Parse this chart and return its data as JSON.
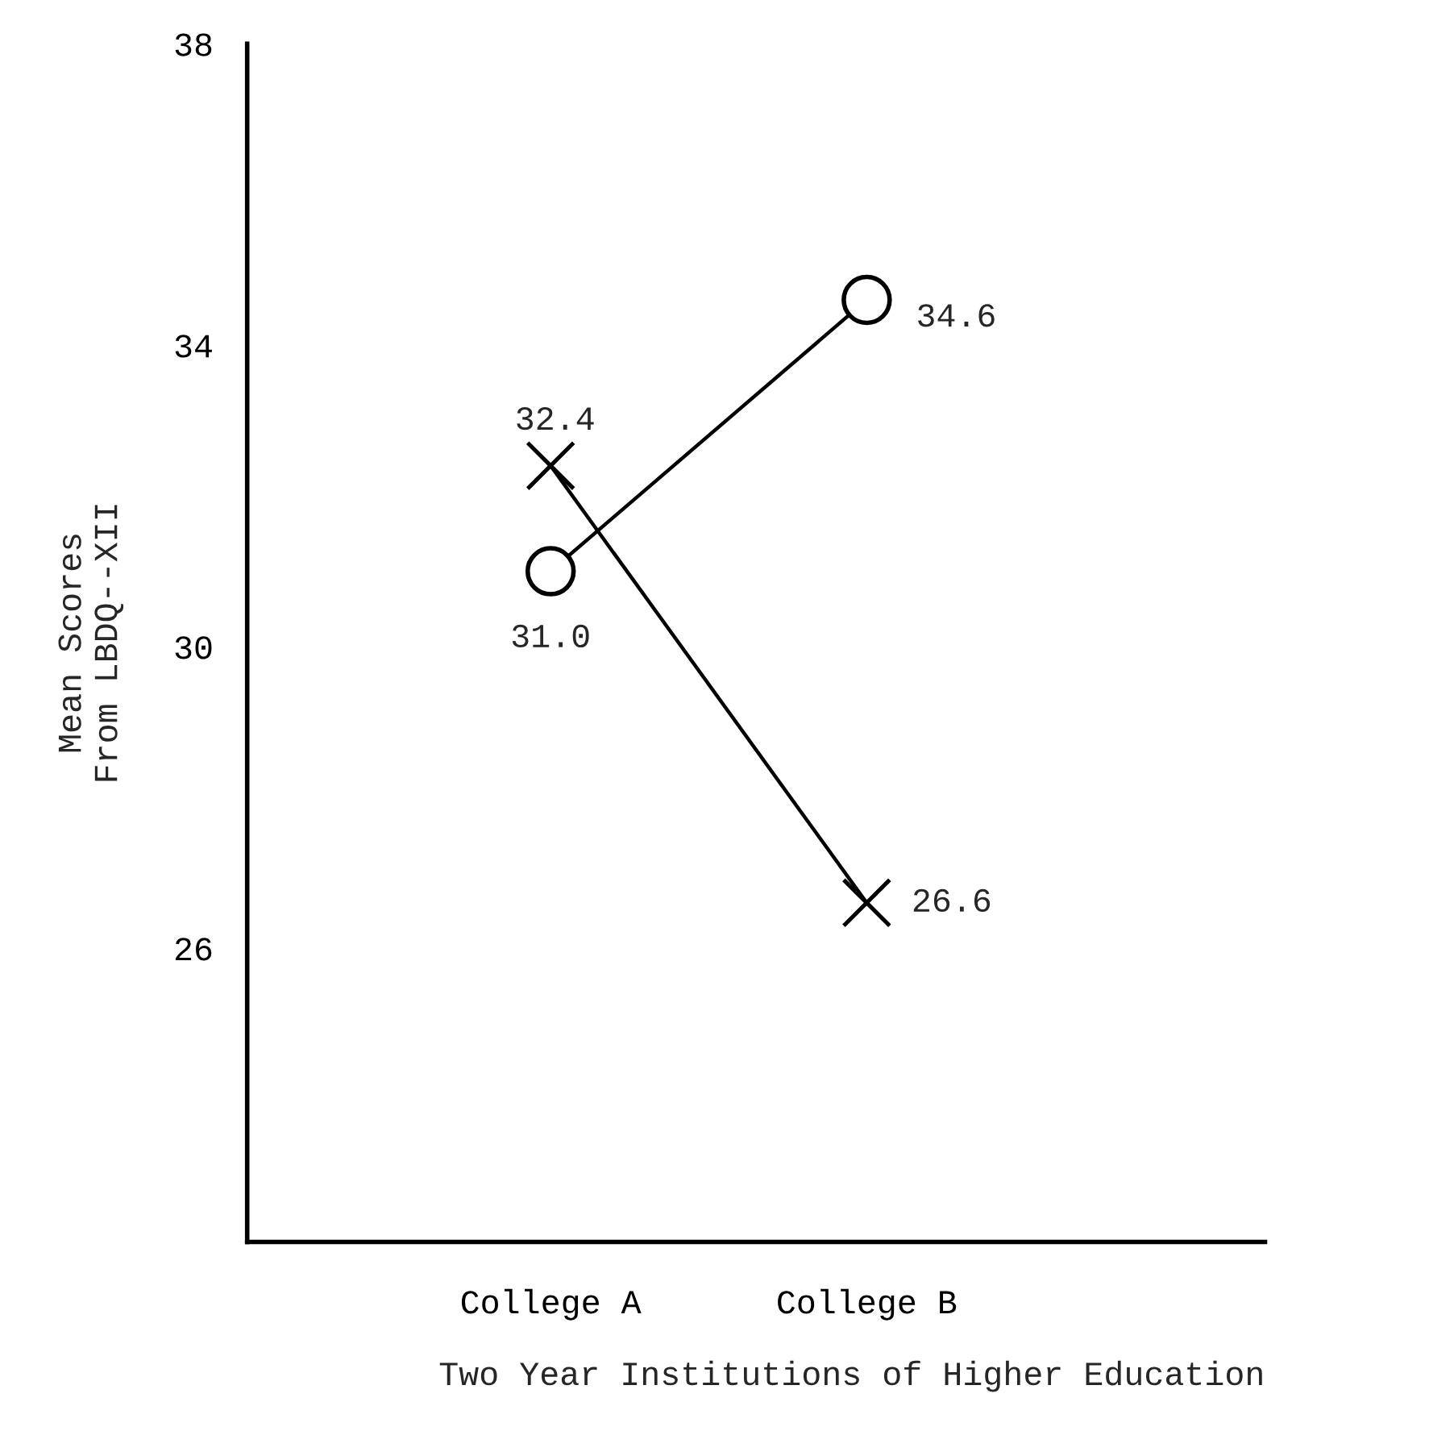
{
  "chart_data": {
    "type": "line",
    "xlabel": "Two Year Institutions of Higher Education",
    "ylabel": "Mean Scores\nFrom LBDQ--XII",
    "categories": [
      "College A",
      "College B"
    ],
    "ylim": [
      22.1,
      38
    ],
    "yticks": [
      26,
      30,
      34,
      38
    ],
    "line_style": "solid",
    "series": [
      {
        "color": "#000000",
        "marker": "circle",
        "values": [
          31.0,
          34.6
        ],
        "value_labels": [
          "31.0",
          "34.6"
        ]
      },
      {
        "color": "#000000",
        "marker": "cross",
        "values": [
          32.4,
          26.6
        ],
        "value_labels": [
          "32.4",
          "26.6"
        ]
      }
    ]
  }
}
